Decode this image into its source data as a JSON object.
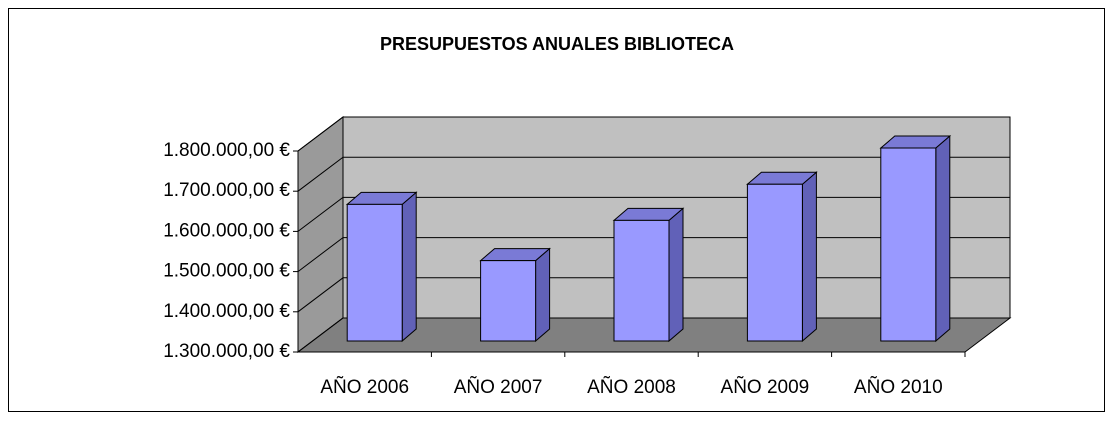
{
  "chart_data": {
    "type": "bar3d",
    "title": "PRESUPUESTOS ANUALES BIBLIOTECA",
    "categories": [
      "AÑO 2006",
      "AÑO 2007",
      "AÑO 2008",
      "AÑO 2009",
      "AÑO 2010"
    ],
    "values": [
      1640000,
      1500000,
      1600000,
      1690000,
      1780000
    ],
    "color": "#9999ff",
    "ylim": [
      1300000,
      1800000
    ],
    "yticks": [
      {
        "value": 1300000,
        "label": "1.300.000,00 €"
      },
      {
        "value": 1400000,
        "label": "1.400.000,00 €"
      },
      {
        "value": 1500000,
        "label": "1.500.000,00 €"
      },
      {
        "value": 1600000,
        "label": "1.600.000,00 €"
      },
      {
        "value": 1700000,
        "label": "1.700.000,00 €"
      },
      {
        "value": 1800000,
        "label": "1.800.000,00 €"
      }
    ],
    "grid": true
  }
}
